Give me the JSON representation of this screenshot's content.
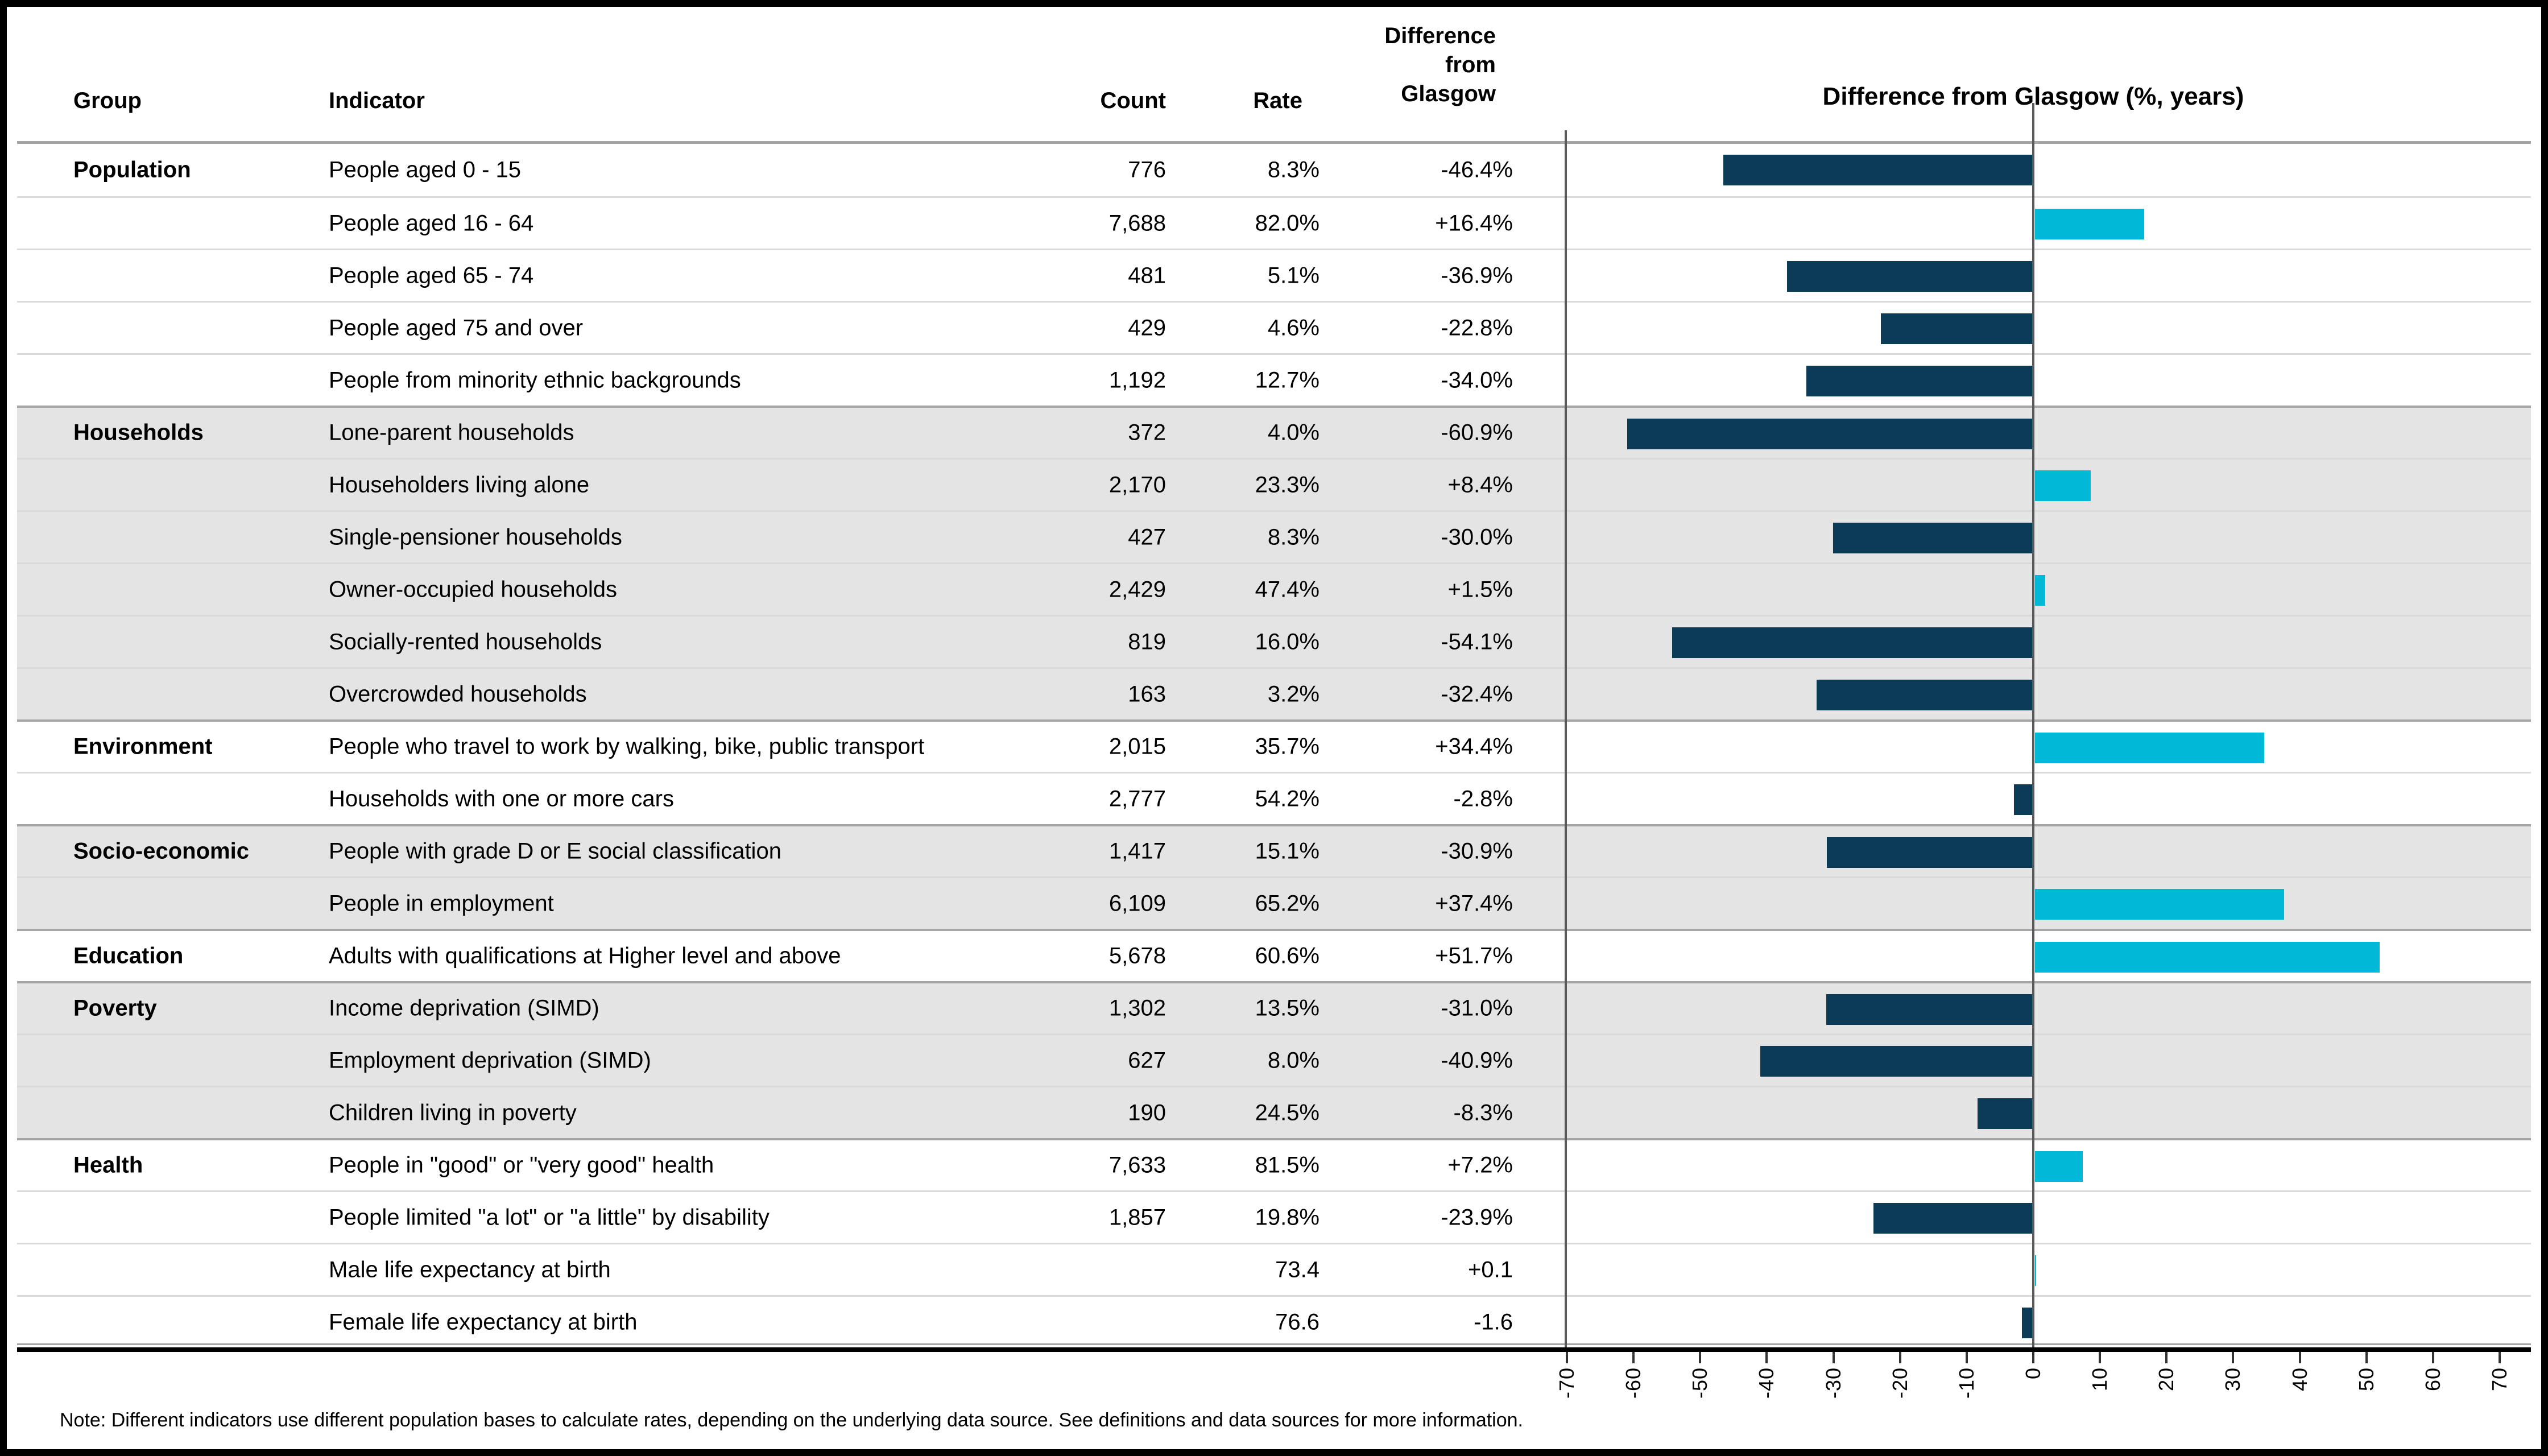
{
  "header": {
    "group": "Group",
    "indicator": "Indicator",
    "count": "Count",
    "rate": "Rate",
    "diff_line1": "Difference",
    "diff_line2": "from",
    "diff_line3": "Glasgow"
  },
  "chart": {
    "title": "Difference from Glasgow (%, years)",
    "axis_min": -70,
    "axis_max": 70,
    "axis_step": 10,
    "tick_labels": [
      "-70",
      "-60",
      "-50",
      "-40",
      "-30",
      "-20",
      "-10",
      "0",
      "10",
      "20",
      "30",
      "40",
      "50",
      "60",
      "70"
    ],
    "negative_color": "#0b3b57",
    "positive_color": "#00b9d6"
  },
  "note": "Note: Different indicators use different population bases to calculate rates, depending on the underlying data source. See definitions and data sources for more information.",
  "groups": [
    {
      "label": "Population",
      "shaded": false,
      "rows": [
        {
          "indicator": "People aged 0 - 15",
          "count": "776",
          "rate": "8.3%",
          "diff": "-46.4%",
          "value": -46.4
        },
        {
          "indicator": "People aged 16 - 64",
          "count": "7,688",
          "rate": "82.0%",
          "diff": "+16.4%",
          "value": 16.4
        },
        {
          "indicator": "People aged 65 - 74",
          "count": "481",
          "rate": "5.1%",
          "diff": "-36.9%",
          "value": -36.9
        },
        {
          "indicator": "People aged 75 and over",
          "count": "429",
          "rate": "4.6%",
          "diff": "-22.8%",
          "value": -22.8
        },
        {
          "indicator": "People from minority ethnic backgrounds",
          "count": "1,192",
          "rate": "12.7%",
          "diff": "-34.0%",
          "value": -34.0
        }
      ]
    },
    {
      "label": "Households",
      "shaded": true,
      "rows": [
        {
          "indicator": "Lone-parent households",
          "count": "372",
          "rate": "4.0%",
          "diff": "-60.9%",
          "value": -60.9
        },
        {
          "indicator": "Householders living alone",
          "count": "2,170",
          "rate": "23.3%",
          "diff": "+8.4%",
          "value": 8.4
        },
        {
          "indicator": "Single-pensioner households",
          "count": "427",
          "rate": "8.3%",
          "diff": "-30.0%",
          "value": -30.0
        },
        {
          "indicator": "Owner-occupied households",
          "count": "2,429",
          "rate": "47.4%",
          "diff": "+1.5%",
          "value": 1.5
        },
        {
          "indicator": "Socially-rented households",
          "count": "819",
          "rate": "16.0%",
          "diff": "-54.1%",
          "value": -54.1
        },
        {
          "indicator": "Overcrowded households",
          "count": "163",
          "rate": "3.2%",
          "diff": "-32.4%",
          "value": -32.4
        }
      ]
    },
    {
      "label": "Environment",
      "shaded": false,
      "rows": [
        {
          "indicator": "People who travel to work by walking, bike, public transport",
          "count": "2,015",
          "rate": "35.7%",
          "diff": "+34.4%",
          "value": 34.4
        },
        {
          "indicator": "Households with one or more cars",
          "count": "2,777",
          "rate": "54.2%",
          "diff": "-2.8%",
          "value": -2.8
        }
      ]
    },
    {
      "label": "Socio-economic",
      "shaded": true,
      "rows": [
        {
          "indicator": "People with grade D or E social classification",
          "count": "1,417",
          "rate": "15.1%",
          "diff": "-30.9%",
          "value": -30.9
        },
        {
          "indicator": "People in employment",
          "count": "6,109",
          "rate": "65.2%",
          "diff": "+37.4%",
          "value": 37.4
        }
      ]
    },
    {
      "label": "Education",
      "shaded": false,
      "rows": [
        {
          "indicator": "Adults with qualifications at Higher level and above",
          "count": "5,678",
          "rate": "60.6%",
          "diff": "+51.7%",
          "value": 51.7
        }
      ]
    },
    {
      "label": "Poverty",
      "shaded": true,
      "rows": [
        {
          "indicator": "Income deprivation (SIMD)",
          "count": "1,302",
          "rate": "13.5%",
          "diff": "-31.0%",
          "value": -31.0
        },
        {
          "indicator": "Employment deprivation (SIMD)",
          "count": "627",
          "rate": "8.0%",
          "diff": "-40.9%",
          "value": -40.9
        },
        {
          "indicator": "Children living in poverty",
          "count": "190",
          "rate": "24.5%",
          "diff": "-8.3%",
          "value": -8.3
        }
      ]
    },
    {
      "label": "Health",
      "shaded": false,
      "rows": [
        {
          "indicator": "People in \"good\" or \"very good\" health",
          "count": "7,633",
          "rate": "81.5%",
          "diff": "+7.2%",
          "value": 7.2
        },
        {
          "indicator": "People limited \"a lot\" or \"a little\" by disability",
          "count": "1,857",
          "rate": "19.8%",
          "diff": "-23.9%",
          "value": -23.9
        },
        {
          "indicator": "Male life expectancy at birth",
          "count": "",
          "rate": "73.4",
          "diff": "+0.1",
          "value": 0.1
        },
        {
          "indicator": "Female life expectancy at birth",
          "count": "",
          "rate": "76.6",
          "diff": "-1.6",
          "value": -1.6
        }
      ]
    }
  ],
  "chart_data": {
    "type": "bar",
    "title": "Difference from Glasgow (%, years)",
    "xlabel": "",
    "ylabel": "",
    "xlim": [
      -70,
      70
    ],
    "tick_step": 10,
    "orientation": "horizontal",
    "legend": "none",
    "grid": "row separators only, zero line shown",
    "categories": [
      "People aged 0 - 15",
      "People aged 16 - 64",
      "People aged 65 - 74",
      "People aged 75 and over",
      "People from minority ethnic backgrounds",
      "Lone-parent households",
      "Householders living alone",
      "Single-pensioner households",
      "Owner-occupied households",
      "Socially-rented households",
      "Overcrowded households",
      "People who travel to work by walking, bike, public transport",
      "Households with one or more cars",
      "People with grade D or E social classification",
      "People in employment",
      "Adults with qualifications at Higher level and above",
      "Income deprivation (SIMD)",
      "Employment deprivation (SIMD)",
      "Children living in poverty",
      "People in \"good\" or \"very good\" health",
      "People limited \"a lot\" or \"a little\" by disability",
      "Male life expectancy at birth",
      "Female life expectancy at birth"
    ],
    "values": [
      -46.4,
      16.4,
      -36.9,
      -22.8,
      -34.0,
      -60.9,
      8.4,
      -30.0,
      1.5,
      -54.1,
      -32.4,
      34.4,
      -2.8,
      -30.9,
      37.4,
      51.7,
      -31.0,
      -40.9,
      -8.3,
      7.2,
      -23.9,
      0.1,
      -1.6
    ],
    "bar_colors": {
      "negative": "#0b3b57",
      "positive": "#00b9d6"
    }
  }
}
